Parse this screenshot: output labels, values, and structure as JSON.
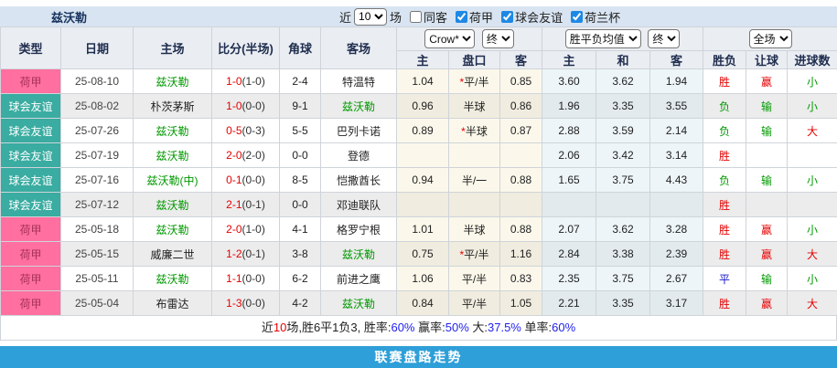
{
  "title": {
    "team": "兹沃勒"
  },
  "filters": {
    "recent_label": "近",
    "recent_value": "10",
    "matches_label": "场",
    "checkboxes": [
      {
        "label": "同客",
        "checked": false
      },
      {
        "label": "荷甲",
        "checked": true
      },
      {
        "label": "球会友谊",
        "checked": true
      },
      {
        "label": "荷兰杯",
        "checked": true
      }
    ]
  },
  "table": {
    "left_headers": [
      "类型",
      "日期",
      "主场",
      "比分(半场)",
      "角球",
      "客场"
    ],
    "selects": {
      "provider": "Crow*",
      "asian_time": "终",
      "euro_type": "胜平负均值",
      "euro_time": "终",
      "scope": "全场"
    },
    "sub_headers": [
      "主",
      "盘口",
      "客",
      "主",
      "和",
      "客",
      "胜负",
      "让球",
      "进球数"
    ],
    "rows": [
      {
        "league": "荷甲",
        "league_kind": "league",
        "date": "25-08-10",
        "home": "兹沃勒",
        "home_self": true,
        "score": "1-0",
        "half": "(1-0)",
        "corners": "2-4",
        "away": "特温特",
        "away_self": false,
        "asian_home": "1.04",
        "star": true,
        "handicap": "平/半",
        "asian_away": "0.85",
        "euro_home": "3.60",
        "euro_draw": "3.62",
        "euro_away": "1.94",
        "wdl": "胜",
        "cover": "赢",
        "goals": "小",
        "shaded": false
      },
      {
        "league": "球会友谊",
        "league_kind": "friendly",
        "date": "25-08-02",
        "home": "朴茨茅斯",
        "home_self": false,
        "score": "1-0",
        "half": "(0-0)",
        "corners": "9-1",
        "away": "兹沃勒",
        "away_self": true,
        "asian_home": "0.96",
        "star": false,
        "handicap": "半球",
        "asian_away": "0.86",
        "euro_home": "1.96",
        "euro_draw": "3.35",
        "euro_away": "3.55",
        "wdl": "负",
        "cover": "输",
        "goals": "小",
        "shaded": true
      },
      {
        "league": "球会友谊",
        "league_kind": "friendly",
        "date": "25-07-26",
        "home": "兹沃勒",
        "home_self": true,
        "score": "0-5",
        "half": "(0-3)",
        "corners": "5-5",
        "away": "巴列卡诺",
        "away_self": false,
        "asian_home": "0.89",
        "star": true,
        "handicap": "半球",
        "asian_away": "0.87",
        "euro_home": "2.88",
        "euro_draw": "3.59",
        "euro_away": "2.14",
        "wdl": "负",
        "cover": "输",
        "goals": "大",
        "shaded": false
      },
      {
        "league": "球会友谊",
        "league_kind": "friendly",
        "date": "25-07-19",
        "home": "兹沃勒",
        "home_self": true,
        "score": "2-0",
        "half": "(2-0)",
        "corners": "0-0",
        "away": "登德",
        "away_self": false,
        "asian_home": "",
        "star": false,
        "handicap": "",
        "asian_away": "",
        "euro_home": "2.06",
        "euro_draw": "3.42",
        "euro_away": "3.14",
        "wdl": "胜",
        "cover": "",
        "goals": "",
        "shaded": false
      },
      {
        "league": "球会友谊",
        "league_kind": "friendly",
        "date": "25-07-16",
        "home": "兹沃勒(中)",
        "home_self": true,
        "score": "0-1",
        "half": "(0-0)",
        "corners": "8-5",
        "away": "恺撒酋长",
        "away_self": false,
        "asian_home": "0.94",
        "star": false,
        "handicap": "半/一",
        "asian_away": "0.88",
        "euro_home": "1.65",
        "euro_draw": "3.75",
        "euro_away": "4.43",
        "wdl": "负",
        "cover": "输",
        "goals": "小",
        "shaded": false
      },
      {
        "league": "球会友谊",
        "league_kind": "friendly",
        "date": "25-07-12",
        "home": "兹沃勒",
        "home_self": true,
        "score": "2-1",
        "half": "(0-1)",
        "corners": "0-0",
        "away": "邓迪联队",
        "away_self": false,
        "asian_home": "",
        "star": false,
        "handicap": "",
        "asian_away": "",
        "euro_home": "",
        "euro_draw": "",
        "euro_away": "",
        "wdl": "胜",
        "cover": "",
        "goals": "",
        "shaded": true
      },
      {
        "league": "荷甲",
        "league_kind": "league",
        "date": "25-05-18",
        "home": "兹沃勒",
        "home_self": true,
        "score": "2-0",
        "half": "(1-0)",
        "corners": "4-1",
        "away": "格罗宁根",
        "away_self": false,
        "asian_home": "1.01",
        "star": false,
        "handicap": "半球",
        "asian_away": "0.88",
        "euro_home": "2.07",
        "euro_draw": "3.62",
        "euro_away": "3.28",
        "wdl": "胜",
        "cover": "赢",
        "goals": "小",
        "shaded": false
      },
      {
        "league": "荷甲",
        "league_kind": "league",
        "date": "25-05-15",
        "home": "威廉二世",
        "home_self": false,
        "score": "1-2",
        "half": "(0-1)",
        "corners": "3-8",
        "away": "兹沃勒",
        "away_self": true,
        "asian_home": "0.75",
        "star": true,
        "handicap": "平/半",
        "asian_away": "1.16",
        "euro_home": "2.84",
        "euro_draw": "3.38",
        "euro_away": "2.39",
        "wdl": "胜",
        "cover": "赢",
        "goals": "大",
        "shaded": true
      },
      {
        "league": "荷甲",
        "league_kind": "league",
        "date": "25-05-11",
        "home": "兹沃勒",
        "home_self": true,
        "score": "1-1",
        "half": "(0-0)",
        "corners": "6-2",
        "away": "前进之鹰",
        "away_self": false,
        "asian_home": "1.06",
        "star": false,
        "handicap": "平/半",
        "asian_away": "0.83",
        "euro_home": "2.35",
        "euro_draw": "3.75",
        "euro_away": "2.67",
        "wdl": "平",
        "cover": "输",
        "goals": "小",
        "shaded": false
      },
      {
        "league": "荷甲",
        "league_kind": "league",
        "date": "25-05-04",
        "home": "布雷达",
        "home_self": false,
        "score": "1-3",
        "half": "(0-0)",
        "corners": "4-2",
        "away": "兹沃勒",
        "away_self": true,
        "asian_home": "0.84",
        "star": false,
        "handicap": "平/半",
        "asian_away": "1.05",
        "euro_home": "2.21",
        "euro_draw": "3.35",
        "euro_away": "3.17",
        "wdl": "胜",
        "cover": "赢",
        "goals": "大",
        "shaded": true
      }
    ]
  },
  "summary": {
    "prefix": "近",
    "count": "10",
    "record": "场,胜6平1负3, 胜率:",
    "win_rate": "60%",
    "seg2": " 赢率:",
    "cover_rate": "50%",
    "seg3": " 大:",
    "big_rate": "37.5%",
    "seg4": " 单率:",
    "odd_rate": "60%"
  },
  "footer": {
    "label": "联赛盘路走势"
  },
  "colors": {
    "title_bar_bg": "#d8e4f1",
    "header_bg": "#eaedf2",
    "bottom_bar_bg": "#2e9fd8",
    "score_red": "#e60000",
    "self_team_green": "#009900",
    "percent_blue": "#2222ee",
    "asian_odds_bg": "#fbf8eb",
    "euro_odds_bg": "#edf5f8",
    "league_colors": {
      "league": {
        "bg": "#ff6f9f",
        "fg": "#a8335a"
      },
      "friendly": {
        "bg": "#3aaca1",
        "fg": "#ffffff"
      }
    },
    "result_colors": {
      "胜": "#e60000",
      "平": "#1515cc",
      "负": "#009900",
      "赢": "#e60000",
      "输": "#009900",
      "大": "#e60000",
      "小": "#009900"
    }
  }
}
